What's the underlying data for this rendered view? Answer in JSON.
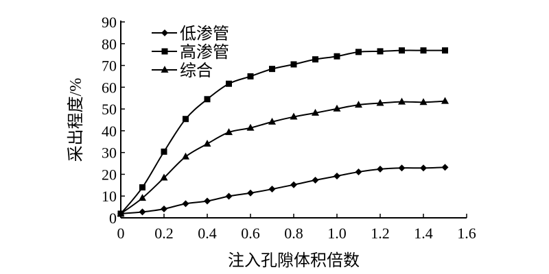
{
  "chart_data": {
    "type": "line",
    "xlabel": "注入孔隙体积倍数",
    "ylabel": "采出程度/%",
    "xlim": [
      0,
      1.6
    ],
    "ylim": [
      0,
      90
    ],
    "xticks": [
      "0",
      "0.2",
      "0.4",
      "0.6",
      "0.8",
      "1.0",
      "1.2",
      "1.4",
      "1.6"
    ],
    "yticks": [
      "0",
      "10",
      "20",
      "30",
      "40",
      "50",
      "60",
      "70",
      "80",
      "90"
    ],
    "grid": false,
    "legend_position": "top-left",
    "x": [
      0,
      0.1,
      0.2,
      0.3,
      0.4,
      0.5,
      0.6,
      0.7,
      0.8,
      0.9,
      1.0,
      1.1,
      1.2,
      1.3,
      1.4,
      1.5
    ],
    "series": [
      {
        "name": "低渗管",
        "marker": "diamond",
        "values": [
          1.9,
          2.7,
          4.1,
          6.5,
          7.7,
          9.9,
          11.4,
          13.2,
          15.2,
          17.3,
          19.2,
          21.1,
          22.4,
          22.9,
          22.9,
          23.2
        ]
      },
      {
        "name": "高渗管",
        "marker": "square",
        "values": [
          1.9,
          14.0,
          30.4,
          45.4,
          54.5,
          61.6,
          65.0,
          68.4,
          70.5,
          72.8,
          74.2,
          76.2,
          76.5,
          76.9,
          76.9,
          76.9
        ]
      },
      {
        "name": "综合",
        "marker": "triangle",
        "values": [
          1.9,
          9.1,
          18.4,
          28.1,
          34.0,
          39.3,
          41.3,
          44.1,
          46.4,
          48.2,
          50.1,
          51.9,
          52.7,
          53.3,
          53.1,
          53.6
        ]
      }
    ],
    "color": "#000000"
  }
}
